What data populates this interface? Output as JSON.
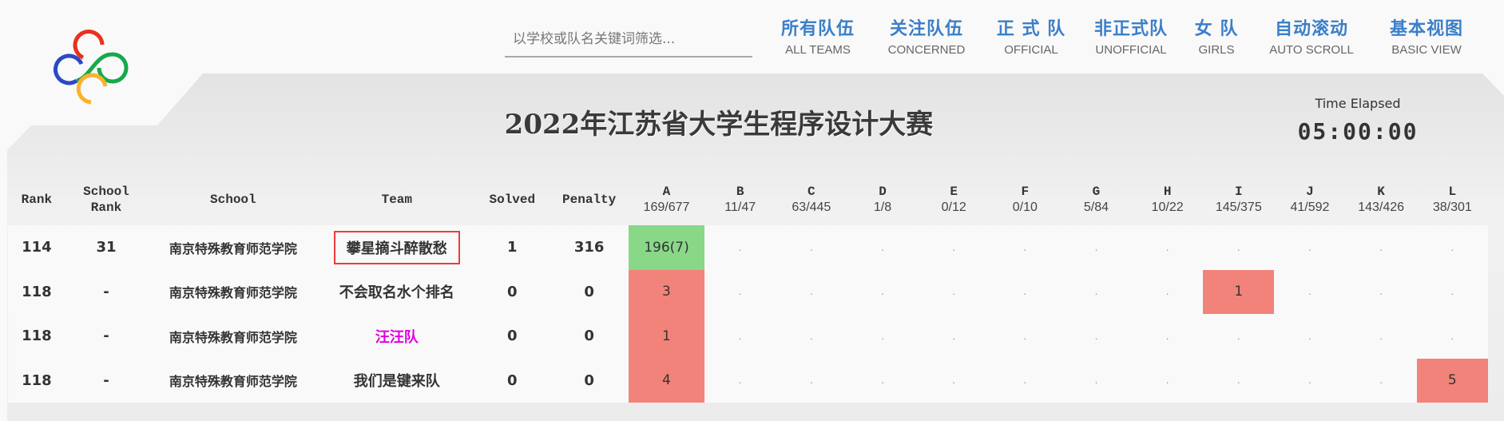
{
  "search": {
    "placeholder": "以学校或队名关键词筛选..."
  },
  "nav": [
    {
      "zh": "所有队伍",
      "en": "ALL TEAMS"
    },
    {
      "zh": "关注队伍",
      "en": "CONCERNED"
    },
    {
      "zh": "正 式 队",
      "en": "OFFICIAL"
    },
    {
      "zh": "非正式队",
      "en": "UNOFFICIAL"
    },
    {
      "zh": "女 队",
      "en": "GIRLS"
    },
    {
      "zh": "自动滚动",
      "en": "AUTO SCROLL"
    },
    {
      "zh": "基本视图",
      "en": "BASIC VIEW"
    }
  ],
  "title": "2022年江苏省大学生程序设计大赛",
  "time_label": "Time Elapsed",
  "time": "05:00:00",
  "colors": {
    "accepted": "#88d888",
    "rejected": "#f2837a",
    "girls_team": "#e000e0",
    "nav": "#3b7fc9",
    "highlight": "#ee3b3b"
  },
  "headers": {
    "rank": "Rank",
    "school_rank": "School Rank",
    "school": "School",
    "team": "Team",
    "solved": "Solved",
    "penalty": "Penalty"
  },
  "problems": [
    {
      "id": "A",
      "stat": "169/677"
    },
    {
      "id": "B",
      "stat": "11/47"
    },
    {
      "id": "C",
      "stat": "63/445"
    },
    {
      "id": "D",
      "stat": "1/8"
    },
    {
      "id": "E",
      "stat": "0/12"
    },
    {
      "id": "F",
      "stat": "0/10"
    },
    {
      "id": "G",
      "stat": "5/84"
    },
    {
      "id": "H",
      "stat": "10/22"
    },
    {
      "id": "I",
      "stat": "145/375"
    },
    {
      "id": "J",
      "stat": "41/592"
    },
    {
      "id": "K",
      "stat": "143/426"
    },
    {
      "id": "L",
      "stat": "38/301"
    }
  ],
  "rows": [
    {
      "rank": "114",
      "school_rank": "31",
      "school": "南京特殊教育师范学院",
      "team": "攀星摘斗醉散愁",
      "highlighted": true,
      "girls": false,
      "solved": "1",
      "penalty": "316",
      "cells": [
        {
          "v": "196(7)",
          "s": "ac"
        },
        {
          "v": ".",
          "s": ""
        },
        {
          "v": ".",
          "s": ""
        },
        {
          "v": ".",
          "s": ""
        },
        {
          "v": ".",
          "s": ""
        },
        {
          "v": ".",
          "s": ""
        },
        {
          "v": ".",
          "s": ""
        },
        {
          "v": ".",
          "s": ""
        },
        {
          "v": ".",
          "s": ""
        },
        {
          "v": ".",
          "s": ""
        },
        {
          "v": ".",
          "s": ""
        },
        {
          "v": ".",
          "s": ""
        }
      ]
    },
    {
      "rank": "118",
      "school_rank": "-",
      "school": "南京特殊教育师范学院",
      "team": "不会取名水个排名",
      "highlighted": false,
      "girls": false,
      "solved": "0",
      "penalty": "0",
      "cells": [
        {
          "v": "3",
          "s": "wa"
        },
        {
          "v": ".",
          "s": ""
        },
        {
          "v": ".",
          "s": ""
        },
        {
          "v": ".",
          "s": ""
        },
        {
          "v": ".",
          "s": ""
        },
        {
          "v": ".",
          "s": ""
        },
        {
          "v": ".",
          "s": ""
        },
        {
          "v": ".",
          "s": ""
        },
        {
          "v": "1",
          "s": "wa"
        },
        {
          "v": ".",
          "s": ""
        },
        {
          "v": ".",
          "s": ""
        },
        {
          "v": ".",
          "s": ""
        }
      ]
    },
    {
      "rank": "118",
      "school_rank": "-",
      "school": "南京特殊教育师范学院",
      "team": "汪汪队",
      "highlighted": false,
      "girls": true,
      "solved": "0",
      "penalty": "0",
      "cells": [
        {
          "v": "1",
          "s": "wa"
        },
        {
          "v": ".",
          "s": ""
        },
        {
          "v": ".",
          "s": ""
        },
        {
          "v": ".",
          "s": ""
        },
        {
          "v": ".",
          "s": ""
        },
        {
          "v": ".",
          "s": ""
        },
        {
          "v": ".",
          "s": ""
        },
        {
          "v": ".",
          "s": ""
        },
        {
          "v": ".",
          "s": ""
        },
        {
          "v": ".",
          "s": ""
        },
        {
          "v": ".",
          "s": ""
        },
        {
          "v": ".",
          "s": ""
        }
      ]
    },
    {
      "rank": "118",
      "school_rank": "-",
      "school": "南京特殊教育师范学院",
      "team": "我们是键来队",
      "highlighted": false,
      "girls": false,
      "solved": "0",
      "penalty": "0",
      "cells": [
        {
          "v": "4",
          "s": "wa"
        },
        {
          "v": ".",
          "s": ""
        },
        {
          "v": ".",
          "s": ""
        },
        {
          "v": ".",
          "s": ""
        },
        {
          "v": ".",
          "s": ""
        },
        {
          "v": ".",
          "s": ""
        },
        {
          "v": ".",
          "s": ""
        },
        {
          "v": ".",
          "s": ""
        },
        {
          "v": ".",
          "s": ""
        },
        {
          "v": ".",
          "s": ""
        },
        {
          "v": ".",
          "s": ""
        },
        {
          "v": "5",
          "s": "wa"
        }
      ]
    }
  ]
}
